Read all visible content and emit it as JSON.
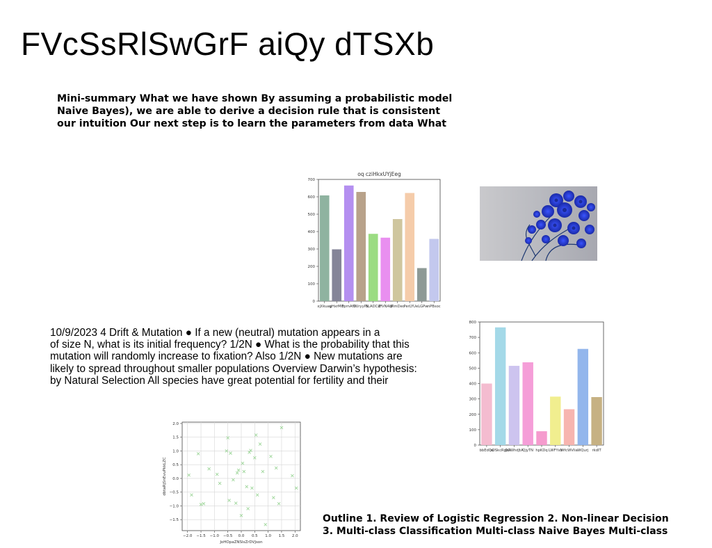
{
  "slide": {
    "title": "FVcSsRlSwGrF aiQy dTSXb",
    "summary_lines": [
      "Mini-summary What we have shown By assuming a probabilistic model",
      "Naive Bayes), we are able to derive a decision rule that is consistent",
      "our intuition Our next step is to learn the parameters from data What"
    ],
    "drift_lines": [
      "10/9/2023 4 Drift & Mutation ● If a new (neutral) mutation appears in a",
      "of size N, what is its initial frequency? 1/2N ● What is the probability that this",
      "mutation will randomly increase to fixation? Also 1/2N ● New mutations are",
      "likely to spread throughout smaller populations Overview Darwin’s hypothesis:",
      "by Natural Selection All species have great potential for fertility and their"
    ],
    "outline_lines": [
      "Outline 1. Review of Logistic Regression 2. Non-linear Decision",
      "3. Multi-class Classification Multi-class Naive Bayes Multi-class"
    ],
    "photo_icon": "blue-flowers-photo"
  },
  "chart_data": [
    {
      "type": "bar",
      "title": "oq cziHkxUYjEeg",
      "categories": [
        "xjXkuag",
        "yHxrMO",
        "FprnAfD",
        "lIUryyPk",
        "SLADCsf",
        "ZfVNAW",
        "jRmDeo",
        "PerLYU",
        "eLGPw",
        "nPBsoc"
      ],
      "values": [
        608,
        298,
        665,
        628,
        387,
        365,
        472,
        622,
        190,
        358
      ],
      "colors": [
        "#8fb3a0",
        "#858598",
        "#b48ff0",
        "#b8a28a",
        "#9bdc82",
        "#e98ff0",
        "#cfc69e",
        "#f5ccaa",
        "#8e9a96",
        "#c3c8ee"
      ],
      "ylim": [
        0,
        700
      ],
      "yticks": [
        0,
        100,
        200,
        300,
        400,
        500,
        600,
        700
      ],
      "xlabel": "",
      "ylabel": ""
    },
    {
      "type": "bar",
      "title": "",
      "categories": [
        "bbEdQu",
        "xDSkcRgkA",
        "QCWhdJtA",
        "QjyTN",
        "hpKDq",
        "LWFYsb",
        "WfcWVlia",
        "WQurj",
        "rkdIT"
      ],
      "values": [
        400,
        765,
        515,
        538,
        90,
        315,
        233,
        625,
        312
      ],
      "colors": [
        "#f4bcd0",
        "#a4d9e8",
        "#cdc4ef",
        "#f59ed8",
        "#f59bce",
        "#f1ee8f",
        "#f7b5b0",
        "#93b6ec",
        "#c6b183"
      ],
      "ylim": [
        0,
        800
      ],
      "yticks": [
        0,
        100,
        200,
        300,
        400,
        500,
        600,
        700,
        800
      ],
      "xlabel": "",
      "ylabel": ""
    },
    {
      "type": "scatter",
      "title": "",
      "xlabel": "JoHOpaZNSlsZrDVJson",
      "ylabel": "dbtaRjSnEvuPkkLZC",
      "xlim": [
        -2.2,
        2.2
      ],
      "ylim": [
        -1.9,
        2.05
      ],
      "xticks": [
        -2.0,
        -1.5,
        -1.0,
        -0.5,
        0.0,
        0.5,
        1.0,
        1.5,
        2.0
      ],
      "yticks": [
        -1.5,
        -1.0,
        -0.5,
        0.0,
        0.5,
        1.0,
        1.5,
        2.0
      ],
      "xtick_labels": [
        "−2.0",
        "−1.5",
        "−1.0",
        "−0.5",
        "0.0",
        "0.5",
        "1.0",
        "1.5",
        "2.0"
      ],
      "ytick_labels": [
        "−1.5",
        "−1.0",
        "−0.5",
        "0.0",
        "0.5",
        "1.0",
        "1.5",
        "2.0"
      ],
      "grid": true,
      "color": "#9ed69a",
      "marker": "x",
      "x": [
        -1.95,
        -1.85,
        -1.6,
        -1.5,
        -1.4,
        -1.2,
        -0.9,
        -0.8,
        -0.55,
        -0.5,
        -0.45,
        -0.4,
        -0.3,
        -0.2,
        -0.15,
        -0.1,
        0.0,
        0.05,
        0.1,
        0.2,
        0.25,
        0.3,
        0.35,
        0.4,
        0.5,
        0.55,
        0.6,
        0.7,
        0.8,
        0.9,
        1.1,
        1.2,
        1.3,
        1.4,
        1.5,
        1.9,
        2.05
      ],
      "y": [
        0.12,
        -0.6,
        0.9,
        -0.95,
        -0.92,
        0.35,
        0.15,
        -0.18,
        1.0,
        1.48,
        -0.8,
        0.92,
        -0.05,
        -0.9,
        0.2,
        0.3,
        -1.35,
        0.55,
        0.25,
        -0.3,
        -1.1,
        0.95,
        1.02,
        -0.35,
        0.75,
        1.58,
        -0.6,
        1.25,
        0.25,
        -1.68,
        0.8,
        -0.7,
        0.38,
        -0.92,
        1.85,
        0.1,
        -0.35
      ]
    }
  ]
}
